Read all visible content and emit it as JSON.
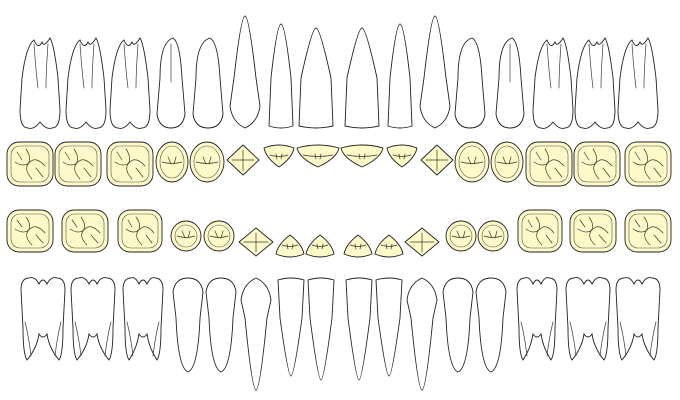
{
  "colors": {
    "root_top": "#f6cc1a",
    "root_bottom": "#ffffff",
    "occlusal_fill": "#fdf9c8",
    "outline": "#222222"
  },
  "arches": {
    "upper": [
      {
        "type": "molar",
        "roots": 3
      },
      {
        "type": "molar",
        "roots": 3
      },
      {
        "type": "molar",
        "roots": 3
      },
      {
        "type": "premolar",
        "roots": 2
      },
      {
        "type": "premolar",
        "roots": 1
      },
      {
        "type": "canine",
        "roots": 1
      },
      {
        "type": "lateral-incisor",
        "roots": 1
      },
      {
        "type": "central-incisor",
        "roots": 1
      },
      {
        "type": "central-incisor",
        "roots": 1
      },
      {
        "type": "lateral-incisor",
        "roots": 1
      },
      {
        "type": "canine",
        "roots": 1
      },
      {
        "type": "premolar",
        "roots": 1
      },
      {
        "type": "premolar",
        "roots": 2
      },
      {
        "type": "molar",
        "roots": 3
      },
      {
        "type": "molar",
        "roots": 3
      },
      {
        "type": "molar",
        "roots": 3
      }
    ],
    "lower": [
      {
        "type": "molar",
        "roots": 2
      },
      {
        "type": "molar",
        "roots": 2
      },
      {
        "type": "molar",
        "roots": 2
      },
      {
        "type": "premolar",
        "roots": 1
      },
      {
        "type": "premolar",
        "roots": 1
      },
      {
        "type": "canine",
        "roots": 1
      },
      {
        "type": "lateral-incisor",
        "roots": 1
      },
      {
        "type": "central-incisor",
        "roots": 1
      },
      {
        "type": "central-incisor",
        "roots": 1
      },
      {
        "type": "lateral-incisor",
        "roots": 1
      },
      {
        "type": "canine",
        "roots": 1
      },
      {
        "type": "premolar",
        "roots": 1
      },
      {
        "type": "premolar",
        "roots": 1
      },
      {
        "type": "molar",
        "roots": 2
      },
      {
        "type": "molar",
        "roots": 2
      },
      {
        "type": "molar",
        "roots": 2
      }
    ]
  }
}
